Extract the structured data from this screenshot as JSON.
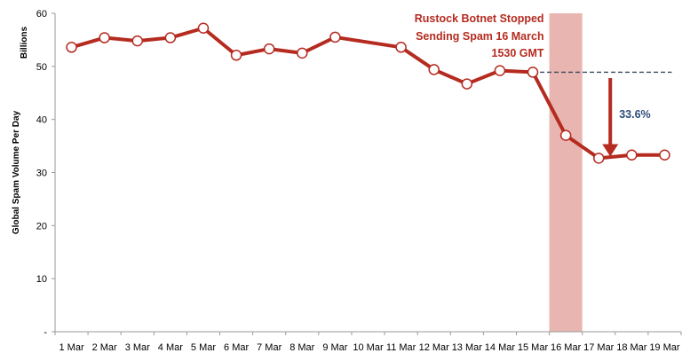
{
  "chart_data": {
    "type": "line",
    "ylabel": "Global Spam  Volume Per Day",
    "yunit": "Billions",
    "ylim": [
      0,
      60
    ],
    "yticks": [
      {
        "value": 60,
        "label": "60"
      },
      {
        "value": 50,
        "label": "50"
      },
      {
        "value": 40,
        "label": "40"
      },
      {
        "value": 30,
        "label": "30"
      },
      {
        "value": 20,
        "label": "20"
      },
      {
        "value": 10,
        "label": "10"
      },
      {
        "value": 0,
        "label": "-"
      }
    ],
    "categories": [
      "1 Mar",
      "2 Mar",
      "3 Mar",
      "4 Mar",
      "5 Mar",
      "6 Mar",
      "7 Mar",
      "8 Mar",
      "9 Mar",
      "10 Mar",
      "11 Mar",
      "12 Mar",
      "13 Mar",
      "14 Mar",
      "15 Mar",
      "16 Mar",
      "17 Mar",
      "18 Mar",
      "19 Mar"
    ],
    "series": [
      {
        "color": "#b52b20",
        "points": [
          {
            "x": 1.0,
            "y": 53.6
          },
          {
            "x": 2.0,
            "y": 55.4
          },
          {
            "x": 3.0,
            "y": 54.8
          },
          {
            "x": 4.0,
            "y": 55.4
          },
          {
            "x": 5.0,
            "y": 57.2
          },
          {
            "x": 6.0,
            "y": 52.1
          },
          {
            "x": 7.0,
            "y": 53.3
          },
          {
            "x": 8.0,
            "y": 52.5
          },
          {
            "x": 9.0,
            "y": 55.5
          },
          {
            "x": 11.0,
            "y": 53.6
          },
          {
            "x": 12.0,
            "y": 49.4
          },
          {
            "x": 13.0,
            "y": 46.7
          },
          {
            "x": 14.0,
            "y": 49.2
          },
          {
            "x": 15.0,
            "y": 48.9
          },
          {
            "x": 16.0,
            "y": 37.0
          },
          {
            "x": 17.0,
            "y": 32.7
          },
          {
            "x": 18.0,
            "y": 33.3
          },
          {
            "x": 19.0,
            "y": 33.3
          }
        ]
      }
    ],
    "highlight_band": {
      "from": 15.5,
      "to": 16.5,
      "color": "#e9b5b0"
    },
    "annotation": {
      "lines": [
        "Rustock Botnet Stopped",
        "Sending Spam  16 March",
        "1530 GMT"
      ],
      "color": "#b52b20"
    },
    "reference_line": {
      "y": 48.9,
      "from": 15.0,
      "to": 19.0,
      "color": "#3a4a5c"
    },
    "drop_arrow": {
      "x": 17.35,
      "from_y": 47.8,
      "to_y": 33.0,
      "color": "#b52b20"
    },
    "drop_label": {
      "text": "33.6%",
      "color": "#2f4d7a"
    },
    "grid": false
  }
}
